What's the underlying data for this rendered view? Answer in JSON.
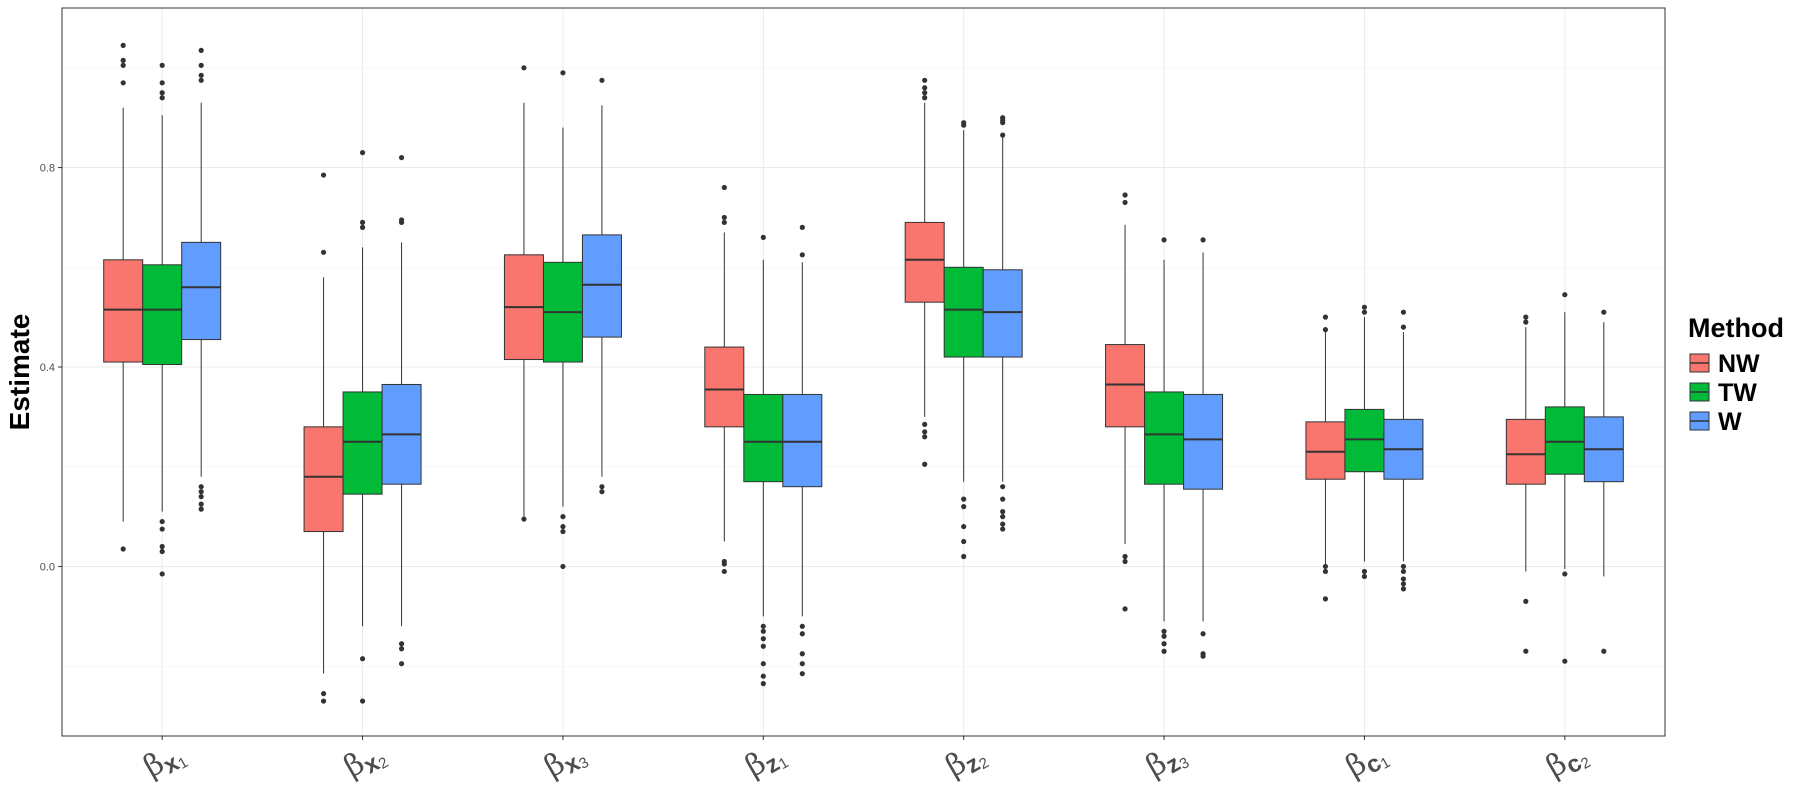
{
  "chart_data": {
    "type": "boxplot",
    "title": "",
    "xlabel": "",
    "ylabel": "Estimate",
    "ylim": [
      -0.34,
      1.12
    ],
    "yticks": [
      0.0,
      0.4,
      0.8
    ],
    "ytick_labels": [
      "0.0",
      "0.4",
      "0.8"
    ],
    "grid": true,
    "legend": {
      "title": "Method",
      "position": "right"
    },
    "categories": [
      {
        "symbol": "β",
        "sub": "x",
        "idx": "1"
      },
      {
        "symbol": "β",
        "sub": "x",
        "idx": "2"
      },
      {
        "symbol": "β",
        "sub": "x",
        "idx": "3"
      },
      {
        "symbol": "β",
        "sub": "z",
        "idx": "1"
      },
      {
        "symbol": "β",
        "sub": "z",
        "idx": "2"
      },
      {
        "symbol": "β",
        "sub": "z",
        "idx": "3"
      },
      {
        "symbol": "β",
        "sub": "c",
        "idx": "1"
      },
      {
        "symbol": "β",
        "sub": "c",
        "idx": "2"
      }
    ],
    "series": [
      {
        "name": "NW",
        "color": "#F8766D",
        "boxes": [
          {
            "lower_whisker": 0.09,
            "q1": 0.41,
            "median": 0.515,
            "q3": 0.615,
            "upper_whisker": 0.92,
            "outliers": [
              0.035,
              0.97,
              1.005,
              1.015,
              1.045
            ]
          },
          {
            "lower_whisker": -0.215,
            "q1": 0.07,
            "median": 0.18,
            "q3": 0.28,
            "upper_whisker": 0.58,
            "outliers": [
              -0.255,
              -0.27,
              0.63,
              0.785
            ]
          },
          {
            "lower_whisker": 0.1,
            "q1": 0.415,
            "median": 0.52,
            "q3": 0.625,
            "upper_whisker": 0.93,
            "outliers": [
              0.095,
              1.0
            ]
          },
          {
            "lower_whisker": 0.05,
            "q1": 0.28,
            "median": 0.355,
            "q3": 0.44,
            "upper_whisker": 0.67,
            "outliers": [
              -0.01,
              0.005,
              0.01,
              0.69,
              0.7,
              0.76
            ]
          },
          {
            "lower_whisker": 0.3,
            "q1": 0.53,
            "median": 0.615,
            "q3": 0.69,
            "upper_whisker": 0.93,
            "outliers": [
              0.205,
              0.26,
              0.27,
              0.285,
              0.94,
              0.95,
              0.96,
              0.975
            ]
          },
          {
            "lower_whisker": 0.045,
            "q1": 0.28,
            "median": 0.365,
            "q3": 0.445,
            "upper_whisker": 0.685,
            "outliers": [
              -0.085,
              0.01,
              0.02,
              0.73,
              0.745
            ]
          },
          {
            "lower_whisker": 0.005,
            "q1": 0.175,
            "median": 0.23,
            "q3": 0.29,
            "upper_whisker": 0.47,
            "outliers": [
              -0.065,
              -0.01,
              0.0,
              0.475,
              0.5
            ]
          },
          {
            "lower_whisker": -0.01,
            "q1": 0.165,
            "median": 0.225,
            "q3": 0.295,
            "upper_whisker": 0.48,
            "outliers": [
              -0.17,
              -0.07,
              0.49,
              0.5
            ]
          }
        ]
      },
      {
        "name": "TW",
        "color": "#00BA38",
        "boxes": [
          {
            "lower_whisker": 0.11,
            "q1": 0.405,
            "median": 0.515,
            "q3": 0.605,
            "upper_whisker": 0.905,
            "outliers": [
              -0.015,
              0.03,
              0.04,
              0.075,
              0.09,
              0.94,
              0.95,
              0.97,
              1.005
            ]
          },
          {
            "lower_whisker": -0.12,
            "q1": 0.145,
            "median": 0.25,
            "q3": 0.35,
            "upper_whisker": 0.64,
            "outliers": [
              -0.185,
              -0.27,
              0.68,
              0.69,
              0.83
            ]
          },
          {
            "lower_whisker": 0.12,
            "q1": 0.41,
            "median": 0.51,
            "q3": 0.61,
            "upper_whisker": 0.88,
            "outliers": [
              0.0,
              0.07,
              0.08,
              0.1,
              0.99
            ]
          },
          {
            "lower_whisker": -0.1,
            "q1": 0.17,
            "median": 0.25,
            "q3": 0.345,
            "upper_whisker": 0.615,
            "outliers": [
              -0.235,
              -0.22,
              -0.195,
              -0.16,
              -0.145,
              -0.13,
              -0.12,
              0.66
            ]
          },
          {
            "lower_whisker": 0.17,
            "q1": 0.42,
            "median": 0.515,
            "q3": 0.6,
            "upper_whisker": 0.875,
            "outliers": [
              0.02,
              0.05,
              0.08,
              0.12,
              0.135,
              0.885,
              0.89
            ]
          },
          {
            "lower_whisker": -0.11,
            "q1": 0.165,
            "median": 0.265,
            "q3": 0.35,
            "upper_whisker": 0.615,
            "outliers": [
              -0.17,
              -0.155,
              -0.14,
              -0.13,
              0.655
            ]
          },
          {
            "lower_whisker": 0.01,
            "q1": 0.19,
            "median": 0.255,
            "q3": 0.315,
            "upper_whisker": 0.5,
            "outliers": [
              -0.02,
              -0.01,
              0.51,
              0.52
            ]
          },
          {
            "lower_whisker": -0.005,
            "q1": 0.185,
            "median": 0.25,
            "q3": 0.32,
            "upper_whisker": 0.51,
            "outliers": [
              -0.19,
              -0.015,
              0.545
            ]
          }
        ]
      },
      {
        "name": "W",
        "color": "#619CFF",
        "boxes": [
          {
            "lower_whisker": 0.18,
            "q1": 0.455,
            "median": 0.56,
            "q3": 0.65,
            "upper_whisker": 0.93,
            "outliers": [
              0.115,
              0.125,
              0.14,
              0.15,
              0.16,
              0.975,
              0.985,
              1.005,
              1.035
            ]
          },
          {
            "lower_whisker": -0.12,
            "q1": 0.165,
            "median": 0.265,
            "q3": 0.365,
            "upper_whisker": 0.65,
            "outliers": [
              -0.195,
              -0.165,
              -0.155,
              0.69,
              0.695,
              0.82
            ]
          },
          {
            "lower_whisker": 0.18,
            "q1": 0.46,
            "median": 0.565,
            "q3": 0.665,
            "upper_whisker": 0.925,
            "outliers": [
              0.15,
              0.16,
              0.975
            ]
          },
          {
            "lower_whisker": -0.1,
            "q1": 0.16,
            "median": 0.25,
            "q3": 0.345,
            "upper_whisker": 0.61,
            "outliers": [
              -0.215,
              -0.195,
              -0.175,
              -0.135,
              -0.12,
              0.625,
              0.68
            ]
          },
          {
            "lower_whisker": 0.17,
            "q1": 0.42,
            "median": 0.51,
            "q3": 0.595,
            "upper_whisker": 0.86,
            "outliers": [
              0.075,
              0.085,
              0.1,
              0.11,
              0.135,
              0.16,
              0.865,
              0.89,
              0.895,
              0.9
            ]
          },
          {
            "lower_whisker": -0.11,
            "q1": 0.155,
            "median": 0.255,
            "q3": 0.345,
            "upper_whisker": 0.63,
            "outliers": [
              -0.18,
              -0.175,
              -0.135,
              0.655
            ]
          },
          {
            "lower_whisker": 0.01,
            "q1": 0.175,
            "median": 0.235,
            "q3": 0.295,
            "upper_whisker": 0.47,
            "outliers": [
              -0.045,
              -0.035,
              -0.025,
              -0.01,
              0.0,
              0.48,
              0.51
            ]
          },
          {
            "lower_whisker": -0.02,
            "q1": 0.17,
            "median": 0.235,
            "q3": 0.3,
            "upper_whisker": 0.49,
            "outliers": [
              -0.17,
              0.51
            ]
          }
        ]
      }
    ]
  }
}
